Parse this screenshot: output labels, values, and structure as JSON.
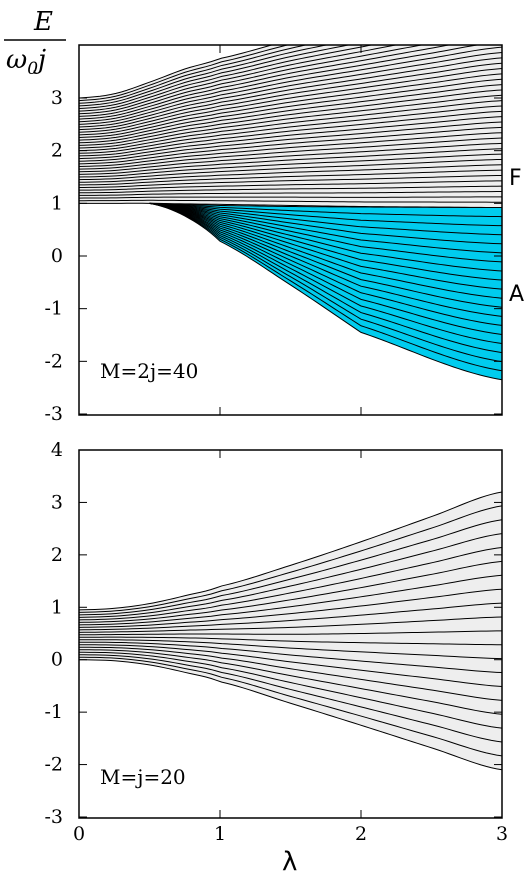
{
  "ylabel": {
    "numerator": "E",
    "denominator_omega": "ω",
    "denominator_sub": "0",
    "denominator_j": "j"
  },
  "xlabel": "λ",
  "colors": {
    "fill_gray": "#eeeeee",
    "fill_cyan": "#00ccee",
    "line": "#000000"
  },
  "chart_data": [
    {
      "type": "line",
      "annotation": "M=2j=40",
      "region_labels": {
        "upper": "F",
        "lower": "A"
      },
      "xlim": [
        0,
        3
      ],
      "ylim": [
        -3.2,
        4.1
      ],
      "xticks": [
        0,
        1,
        2,
        3
      ],
      "yticks": [
        -3,
        -2,
        -1,
        0,
        1,
        2,
        3
      ],
      "x": [
        0,
        0.25,
        0.5,
        0.75,
        1,
        1.5,
        2,
        2.5,
        3
      ],
      "upper_band": {
        "top": [
          3.0,
          3.08,
          3.3,
          3.55,
          3.75,
          4.1,
          4.4,
          4.7,
          4.98
        ],
        "bottom": [
          1.0,
          1.0,
          1.0,
          0.99,
          0.98,
          0.96,
          0.94,
          0.93,
          0.92
        ],
        "line_count": 41
      },
      "lower_band": {
        "x_start": 0.5,
        "top": [
          1.0,
          0.98,
          0.96,
          0.94,
          0.93,
          0.92
        ],
        "bottom": [
          1.0,
          0.76,
          0.28,
          -0.55,
          -1.45,
          -2.35
        ],
        "x": [
          0.5,
          0.75,
          1,
          1.5,
          2,
          3
        ],
        "line_count": 20
      }
    },
    {
      "type": "line",
      "annotation": "M=j=20",
      "xlim": [
        0,
        3
      ],
      "ylim": [
        -3.2,
        4.1
      ],
      "xticks": [
        0,
        1,
        2,
        3
      ],
      "yticks": [
        -3,
        -2,
        -1,
        0,
        1,
        2,
        3,
        4
      ],
      "x": [
        0,
        0.25,
        0.5,
        0.75,
        1,
        1.5,
        2,
        2.5,
        3
      ],
      "band": {
        "top": [
          0.95,
          0.98,
          1.07,
          1.22,
          1.4,
          1.8,
          2.25,
          2.73,
          3.2
        ],
        "bottom": [
          0.0,
          -0.02,
          -0.1,
          -0.24,
          -0.42,
          -0.83,
          -1.25,
          -1.68,
          -2.1
        ],
        "line_count": 21
      }
    }
  ]
}
